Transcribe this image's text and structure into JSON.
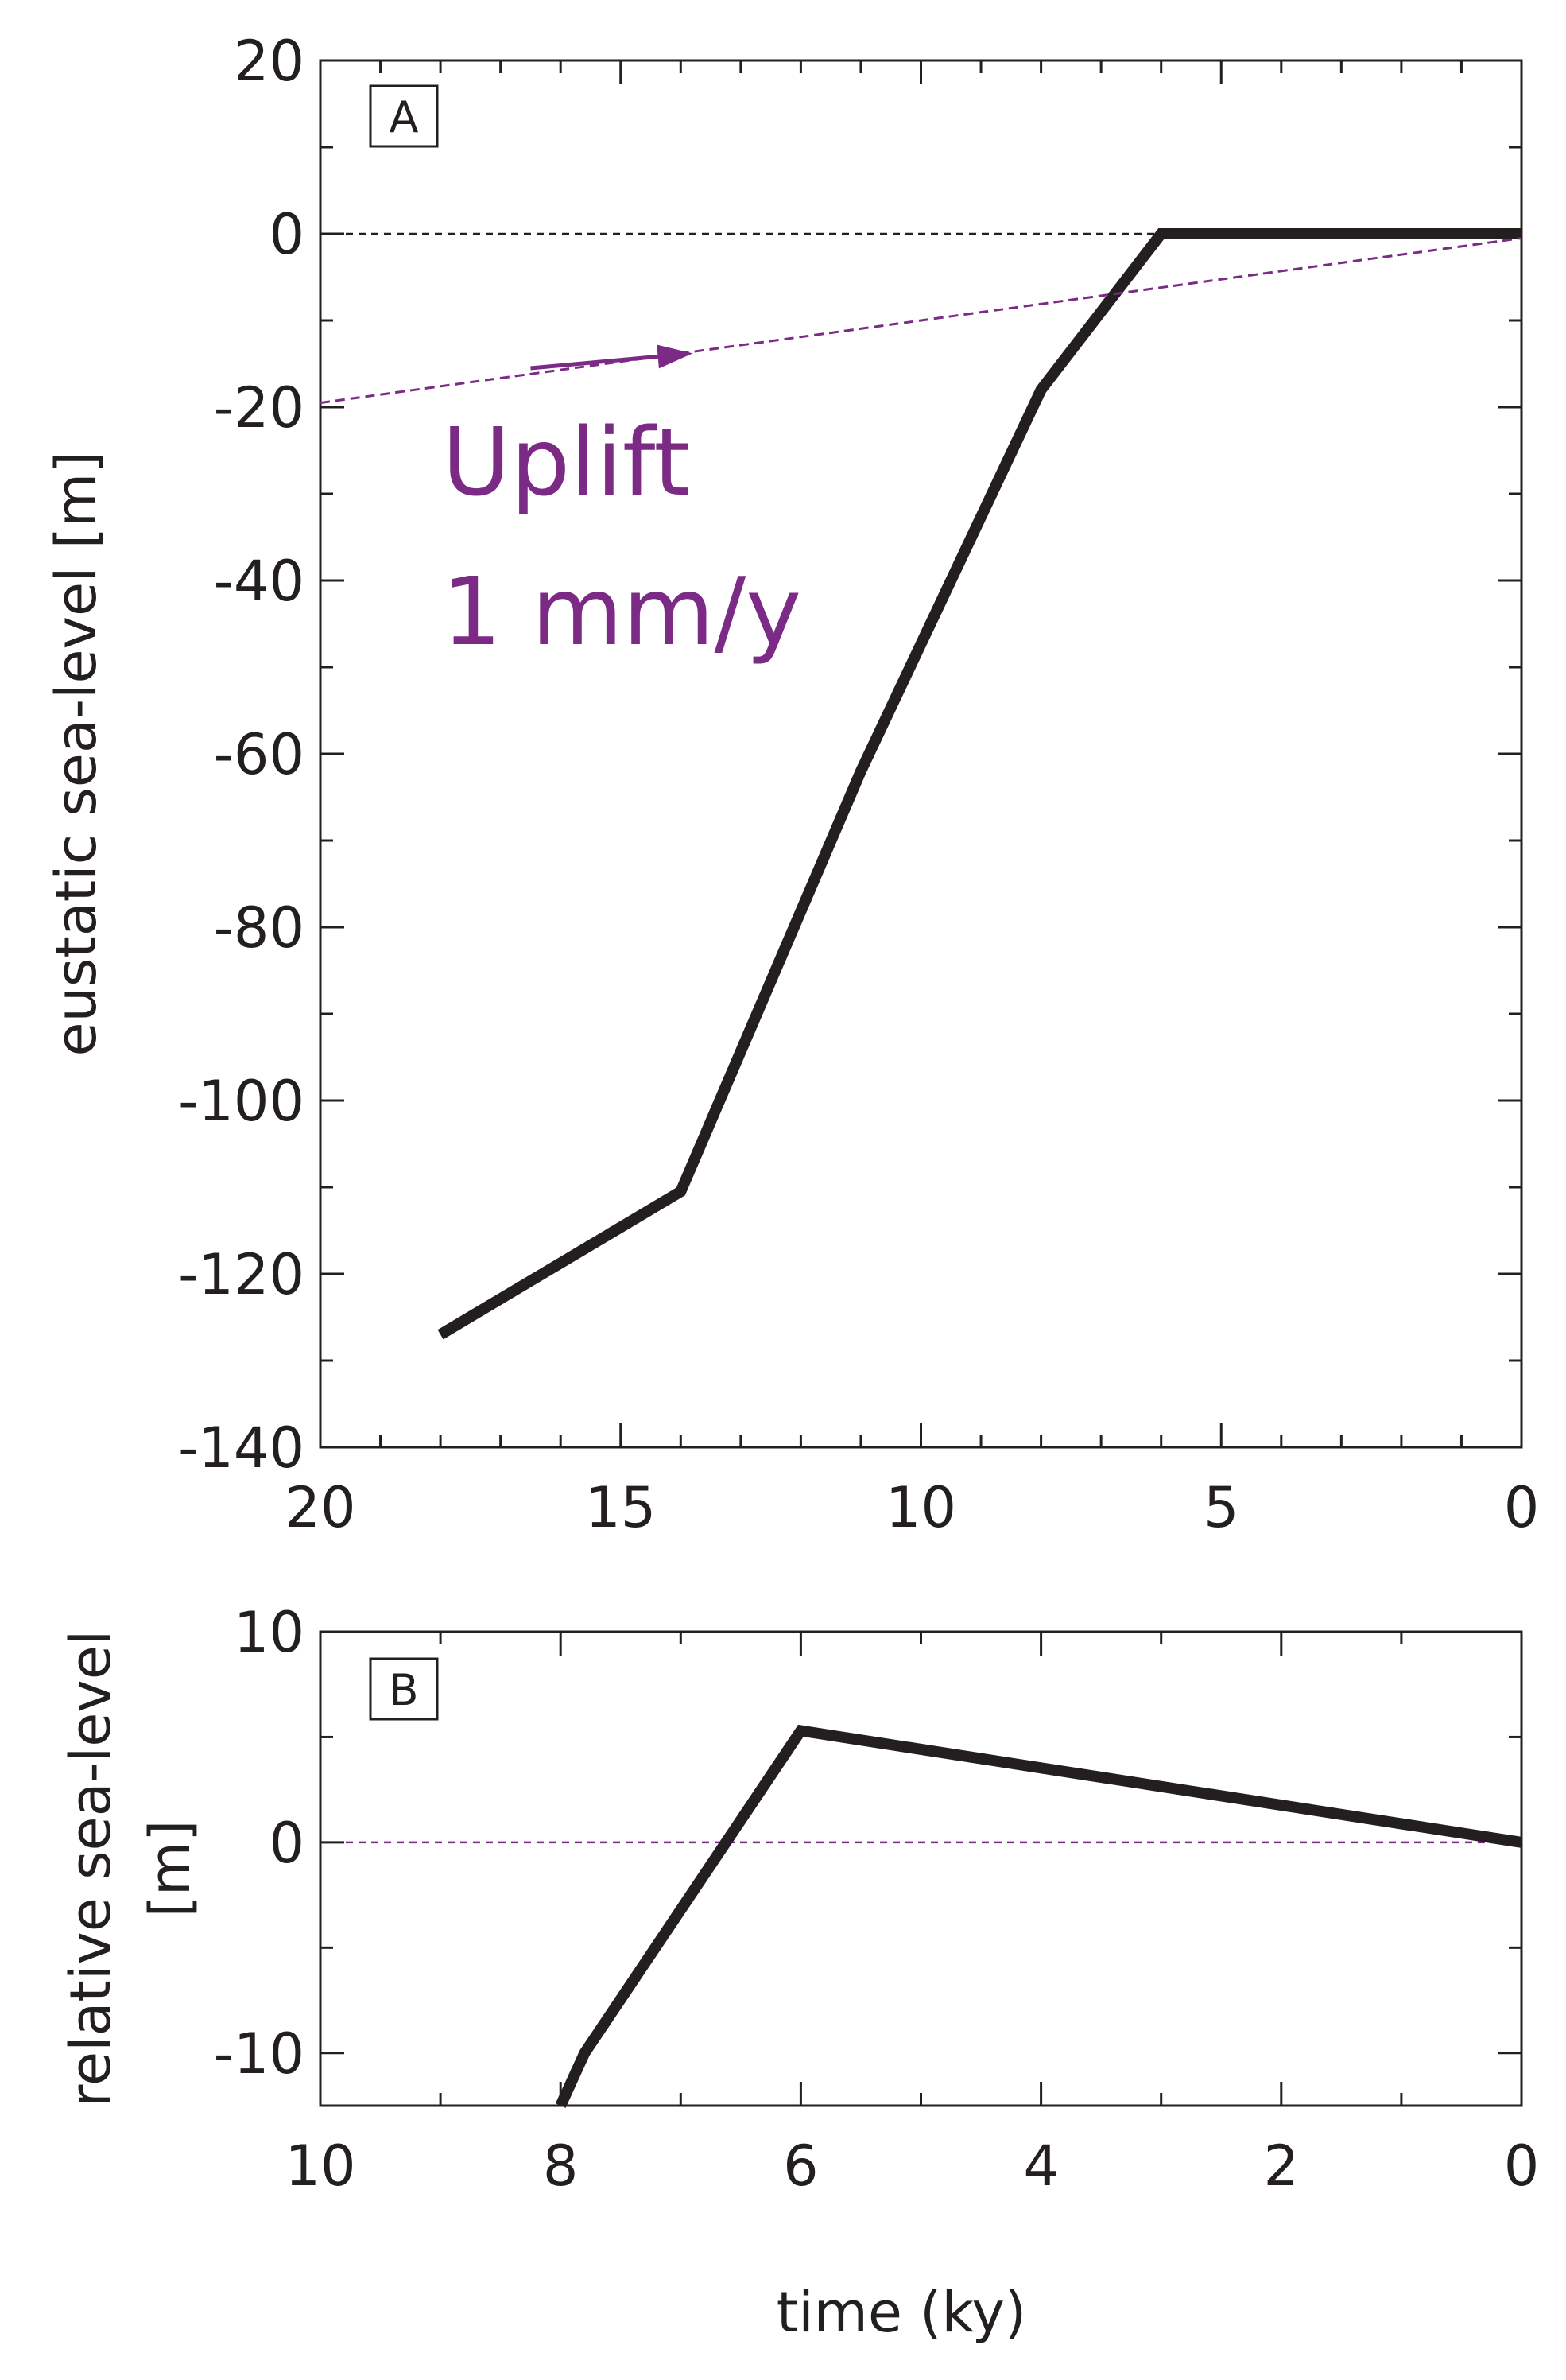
{
  "colors": {
    "axis": "#231f20",
    "line": "#231f20",
    "accent": "#7b2a86",
    "zero_line": "#231f20"
  },
  "chart_data": [
    {
      "panel": "A",
      "type": "line",
      "ylabel": "eustatic sea-level [m]",
      "xlabel": "",
      "xlim": [
        20,
        0
      ],
      "ylim": [
        -140,
        20
      ],
      "x_reversed": true,
      "grid": false,
      "x_ticks": [
        20,
        15,
        10,
        5,
        0
      ],
      "x_tick_labels": [
        "20",
        "15",
        "10",
        "5",
        "0"
      ],
      "x_minor_ticks": [
        19,
        18,
        17,
        16,
        14,
        13,
        12,
        11,
        9,
        8,
        7,
        6,
        4,
        3,
        2,
        1
      ],
      "y_ticks": [
        20,
        0,
        -20,
        -40,
        -60,
        -80,
        -100,
        -120,
        -140
      ],
      "y_tick_labels": [
        "20",
        "0",
        "-20",
        "-40",
        "-60",
        "-80",
        "-100",
        "-120",
        "-140"
      ],
      "y_minor_ticks": [
        10,
        -10,
        -30,
        -50,
        -70,
        -90,
        -110,
        -130
      ],
      "series": [
        {
          "style": "solid-thick",
          "color": "#231f20",
          "x": [
            18,
            14,
            11,
            8,
            6,
            0
          ],
          "y": [
            -127,
            -110.5,
            -62,
            -18,
            0,
            0
          ]
        },
        {
          "style": "dashed",
          "color": "#7b2a86",
          "x": [
            20,
            0
          ],
          "y": [
            -19.5,
            -0.5
          ]
        }
      ],
      "reference_lines": [
        {
          "y": 0,
          "style": "dashed",
          "color": "#231f20"
        }
      ],
      "annotations": [
        {
          "text": "Uplift",
          "color": "#7b2a86"
        },
        {
          "text": "1 mm/y",
          "color": "#7b2a86"
        },
        {
          "type": "arrow",
          "x_from": 16.5,
          "y_from": -15.5,
          "x_to": 13.8,
          "y_to": -13.8,
          "color": "#7b2a86"
        }
      ]
    },
    {
      "panel": "B",
      "type": "line",
      "ylabel": "relative sea-level [m]",
      "ylabel_lines": [
        "relative sea-level",
        "[m]"
      ],
      "xlabel": "time (ky)",
      "xlim": [
        10,
        0
      ],
      "ylim": [
        -12.5,
        10
      ],
      "x_reversed": true,
      "grid": false,
      "x_ticks": [
        10,
        8,
        6,
        4,
        2,
        0
      ],
      "x_tick_labels": [
        "10",
        "8",
        "6",
        "4",
        "2",
        "0"
      ],
      "x_minor_ticks": [
        9,
        7,
        5,
        3,
        1
      ],
      "y_ticks": [
        10,
        0,
        -10
      ],
      "y_tick_labels": [
        "10",
        "0",
        "-10"
      ],
      "y_minor_ticks": [
        5,
        -5
      ],
      "series": [
        {
          "style": "solid-thick",
          "color": "#231f20",
          "x": [
            8,
            7.8,
            6,
            0
          ],
          "y": [
            -12.5,
            -10,
            5.3,
            0
          ]
        }
      ],
      "reference_lines": [
        {
          "y": 0,
          "style": "dashed",
          "color": "#7b2a86"
        }
      ]
    }
  ]
}
